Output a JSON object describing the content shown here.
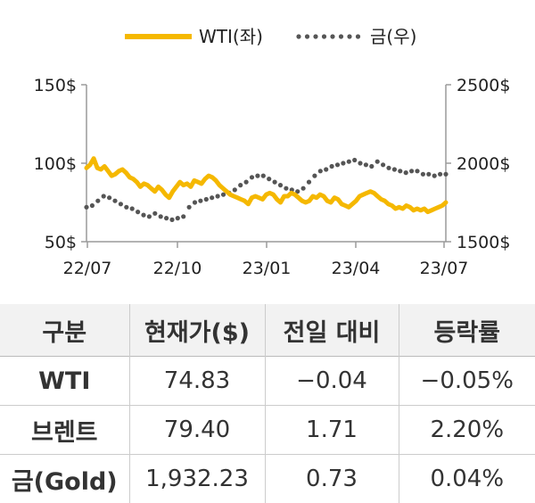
{
  "chart_data": {
    "type": "line",
    "legend": {
      "placement": "top-center"
    },
    "x_ticks": [
      "22/07",
      "22/10",
      "23/01",
      "23/04",
      "23/07"
    ],
    "y_left": {
      "ticks": [
        "150$",
        "100$",
        "50$"
      ],
      "range": [
        50,
        150
      ],
      "tick_values": [
        150,
        100,
        50
      ]
    },
    "y_right": {
      "ticks": [
        "2500$",
        "2000$",
        "1500$"
      ],
      "range": [
        1500,
        2500
      ],
      "tick_values": [
        2500,
        2000,
        1500
      ]
    },
    "grid": false,
    "series": [
      {
        "name": "WTI(좌)",
        "axis": "left",
        "color": "#f5b800",
        "style": "solid",
        "values": [
          97,
          99,
          103,
          97,
          96,
          98,
          95,
          92,
          93,
          95,
          96,
          94,
          91,
          90,
          88,
          85,
          87,
          86,
          84,
          82,
          85,
          83,
          80,
          78,
          82,
          85,
          88,
          86,
          87,
          85,
          89,
          88,
          87,
          90,
          92,
          91,
          89,
          86,
          84,
          82,
          80,
          79,
          78,
          77,
          76,
          74,
          78,
          79,
          78,
          77,
          80,
          81,
          80,
          77,
          75,
          79,
          79,
          81,
          80,
          78,
          76,
          75,
          76,
          79,
          78,
          80,
          79,
          76,
          75,
          78,
          77,
          74,
          73,
          72,
          74,
          76,
          79,
          80,
          81,
          82,
          81,
          79,
          77,
          76,
          74,
          73,
          71,
          72,
          71,
          73,
          72,
          70,
          71,
          70,
          71,
          69,
          70,
          71,
          72,
          73,
          75
        ]
      },
      {
        "name": "금(우)",
        "axis": "right",
        "color": "#555555",
        "style": "dotted",
        "values": [
          1720,
          1730,
          1760,
          1790,
          1780,
          1760,
          1740,
          1720,
          1710,
          1690,
          1670,
          1660,
          1680,
          1660,
          1650,
          1640,
          1650,
          1660,
          1720,
          1750,
          1760,
          1770,
          1780,
          1790,
          1800,
          1810,
          1830,
          1860,
          1880,
          1910,
          1920,
          1920,
          1900,
          1880,
          1860,
          1840,
          1830,
          1820,
          1840,
          1880,
          1920,
          1950,
          1960,
          1980,
          1990,
          2000,
          2010,
          2020,
          2000,
          1990,
          1980,
          2010,
          1990,
          1970,
          1960,
          1950,
          1940,
          1950,
          1950,
          1930,
          1930,
          1920,
          1930,
          1930
        ]
      }
    ]
  },
  "table": {
    "headers": [
      "구분",
      "현재가($)",
      "전일 대비",
      "등락률"
    ],
    "rows": [
      [
        "WTI",
        "74.83",
        "−0.04",
        "−0.05%"
      ],
      [
        "브렌트",
        "79.40",
        "1.71",
        "2.20%"
      ],
      [
        "금(Gold)",
        "1,932.23",
        "0.73",
        "0.04%"
      ]
    ]
  }
}
